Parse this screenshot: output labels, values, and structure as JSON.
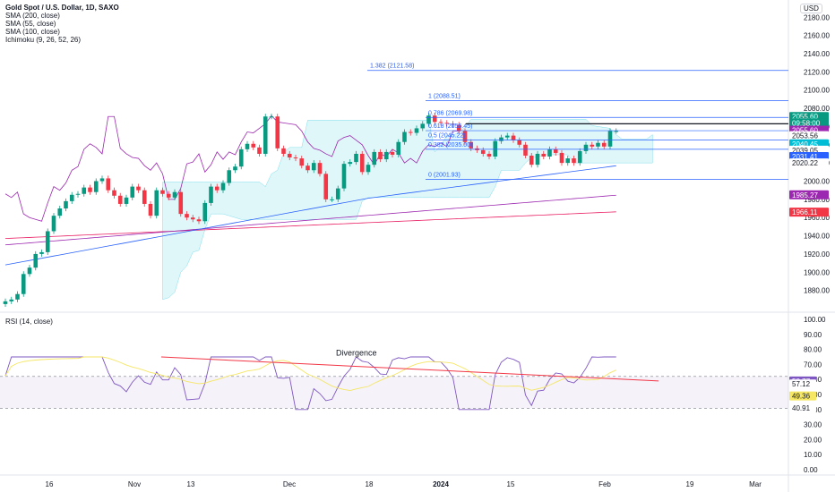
{
  "header": {
    "symbol": "Gold Spot / U.S. Dollar, 1D, SAXO",
    "indicators": [
      "SMA (200, close)",
      "SMA (55, close)",
      "SMA (100, close)",
      "Ichimoku (9, 26, 52, 26)"
    ],
    "currency": "USD"
  },
  "rsi_header": "RSI (14, close)",
  "colors": {
    "up": "#089981",
    "down": "#f23645",
    "sma200": "#e91e63",
    "sma55": "#2962ff",
    "sma100": "#9c27b0",
    "fib": "#2962ff",
    "rsi": "#7e57c2",
    "rsi_ma": "#f5e663",
    "divergence": "#f23645"
  },
  "chart_data": [
    {
      "type": "candlestick",
      "title": "Gold Spot / U.S. Dollar, 1D, SAXO",
      "x_ticks": [
        "16",
        "Nov",
        "13",
        "Dec",
        "18",
        "2024",
        "15",
        "Feb",
        "19",
        "Mar"
      ],
      "y_ticks": [
        1880,
        1900,
        1920,
        1940,
        1960,
        1980,
        2000,
        2020,
        2040,
        2060,
        2080,
        2100,
        2120,
        2140,
        2160,
        2180
      ],
      "ylim": [
        1860,
        2195
      ],
      "closes": [
        1868,
        1870,
        1876,
        1898,
        1905,
        1920,
        1922,
        1945,
        1962,
        1970,
        1978,
        1985,
        1986,
        1993,
        1988,
        2000,
        2003,
        1990,
        1984,
        1975,
        1982,
        1994,
        1990,
        1975,
        1962,
        1990,
        1986,
        1982,
        1988,
        1964,
        1960,
        1958,
        1956,
        1976,
        1994,
        1990,
        1998,
        2012,
        2016,
        2035,
        2041,
        2037,
        2030,
        2071,
        2071,
        2036,
        2030,
        2026,
        2025,
        2017,
        2012,
        2020,
        2008,
        1980,
        1980,
        1992,
        2019,
        2021,
        2030,
        2010,
        2018,
        2032,
        2024,
        2032,
        2029,
        2043,
        2054,
        2053,
        2058,
        2063,
        2072,
        2065,
        2064,
        2063,
        2062,
        2055,
        2043,
        2036,
        2034,
        2030,
        2027,
        2044,
        2048,
        2050,
        2045,
        2040,
        2028,
        2018,
        2030,
        2027,
        2035,
        2031,
        2020,
        2025,
        2020,
        2033,
        2040,
        2038,
        2042,
        2038,
        2055,
        2055
      ],
      "last_price": 2055.6,
      "countdown": "09:58:00",
      "series_lines": [
        {
          "name": "SMA (200, close)",
          "color": "#e91e63",
          "last": 1966.11
        },
        {
          "name": "SMA (55, close)",
          "color": "#2962ff",
          "last": 2031.41
        },
        {
          "name": "SMA (100, close)",
          "color": "#9c27b0",
          "last": 1985.27
        }
      ],
      "price_labels": [
        {
          "value": "2055.60",
          "color": "#089981"
        },
        {
          "value": "09:58:00",
          "color": "#089981"
        },
        {
          "value": "2055.60",
          "color": "#9c27b0"
        },
        {
          "value": "2053.56",
          "color": "#ffffff"
        },
        {
          "value": "2040.45",
          "color": "#00bcd4"
        },
        {
          "value": "2039.05",
          "color": "#ffffff"
        },
        {
          "value": "2031.41",
          "color": "#2962ff"
        },
        {
          "value": "2020.22",
          "color": "#ffffff"
        },
        {
          "value": "1985.27",
          "color": "#9c27b0"
        },
        {
          "value": "1966.11",
          "color": "#f23645"
        }
      ],
      "fibonacci": [
        {
          "label": "1.382 (2121.58)",
          "value": 2121.58
        },
        {
          "label": "1 (2088.51)",
          "value": 2088.51
        },
        {
          "label": "0.786 (2069.98)",
          "value": 2069.98
        },
        {
          "label": "0.618 (2055.45)",
          "value": 2055.45
        },
        {
          "label": "0.5 (2045.22)",
          "value": 2045.22
        },
        {
          "label": "0.382 (2035.00)",
          "value": 2035.0
        },
        {
          "label": "0 (2001.93)",
          "value": 2001.93
        }
      ]
    },
    {
      "type": "line",
      "title": "RSI (14, close)",
      "y_ticks": [
        0,
        10,
        20,
        30,
        40,
        50,
        60,
        70,
        80,
        90,
        100
      ],
      "ylim": [
        0,
        100
      ],
      "band": [
        40.91,
        62.0
      ],
      "series": [
        {
          "name": "RSI",
          "last": 58.77
        },
        {
          "name": "RSI MA",
          "last": 49.36
        }
      ],
      "value_labels": [
        "58.77",
        "57.12",
        "49.36",
        "40.91"
      ],
      "annotation": "Divergence"
    }
  ]
}
